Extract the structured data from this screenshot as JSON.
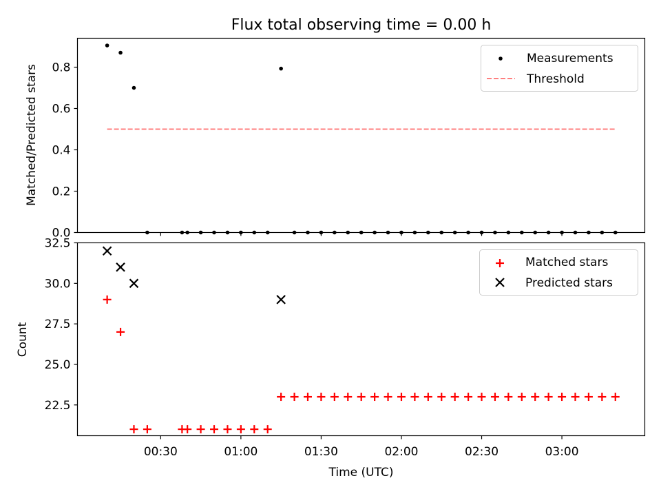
{
  "chart_data": [
    {
      "type": "scatter",
      "title": "Flux total observing time = 0.00 h",
      "ylabel": "Matched/Predicted stars",
      "xlabel": "",
      "ylim": [
        0,
        0.94
      ],
      "yticks": [
        "0.0",
        "0.2",
        "0.4",
        "0.6",
        "0.8"
      ],
      "grid": false,
      "legend_position": "top-right",
      "series": [
        {
          "name": "Measurements",
          "marker": "dot",
          "color": "#000000",
          "points": [
            [
              "00:10",
              0.905
            ],
            [
              "00:15",
              0.87
            ],
            [
              "00:20",
              0.7
            ],
            [
              "00:25",
              0.0
            ],
            [
              "00:38",
              0.0
            ],
            [
              "00:40",
              0.0
            ],
            [
              "00:45",
              0.0
            ],
            [
              "00:50",
              0.0
            ],
            [
              "00:55",
              0.0
            ],
            [
              "01:00",
              0.0
            ],
            [
              "01:05",
              0.0
            ],
            [
              "01:10",
              0.0
            ],
            [
              "01:15",
              0.793
            ],
            [
              "01:20",
              0.0
            ],
            [
              "01:25",
              0.0
            ],
            [
              "01:30",
              0.0
            ],
            [
              "01:35",
              0.0
            ],
            [
              "01:40",
              0.0
            ],
            [
              "01:45",
              0.0
            ],
            [
              "01:50",
              0.0
            ],
            [
              "01:55",
              0.0
            ],
            [
              "02:00",
              0.0
            ],
            [
              "02:05",
              0.0
            ],
            [
              "02:10",
              0.0
            ],
            [
              "02:15",
              0.0
            ],
            [
              "02:20",
              0.0
            ],
            [
              "02:25",
              0.0
            ],
            [
              "02:30",
              0.0
            ],
            [
              "02:35",
              0.0
            ],
            [
              "02:40",
              0.0
            ],
            [
              "02:45",
              0.0
            ],
            [
              "02:50",
              0.0
            ],
            [
              "02:55",
              0.0
            ],
            [
              "03:00",
              0.0
            ],
            [
              "03:05",
              0.0
            ],
            [
              "03:10",
              0.0
            ],
            [
              "03:15",
              0.0
            ],
            [
              "03:20",
              0.0
            ]
          ]
        },
        {
          "name": "Threshold",
          "marker": "dashed-line",
          "color": "#ff7f7f",
          "points": [
            [
              "00:10",
              0.5
            ],
            [
              "03:20",
              0.5
            ]
          ]
        }
      ]
    },
    {
      "type": "scatter",
      "title": "",
      "ylabel": "Count",
      "xlabel": "Time (UTC)",
      "ylim": [
        20.6,
        32.5
      ],
      "yticks": [
        "22.5",
        "25.0",
        "27.5",
        "30.0",
        "32.5"
      ],
      "xticks": [
        "00:30",
        "01:00",
        "01:30",
        "02:00",
        "02:30",
        "03:00"
      ],
      "grid": false,
      "legend_position": "top-right",
      "series": [
        {
          "name": "Matched stars",
          "marker": "plus",
          "color": "#ff0000",
          "points": [
            [
              "00:10",
              29
            ],
            [
              "00:15",
              27
            ],
            [
              "00:20",
              21
            ],
            [
              "00:25",
              21
            ],
            [
              "00:38",
              21
            ],
            [
              "00:40",
              21
            ],
            [
              "00:45",
              21
            ],
            [
              "00:50",
              21
            ],
            [
              "00:55",
              21
            ],
            [
              "01:00",
              21
            ],
            [
              "01:05",
              21
            ],
            [
              "01:10",
              21
            ],
            [
              "01:15",
              23
            ],
            [
              "01:20",
              23
            ],
            [
              "01:25",
              23
            ],
            [
              "01:30",
              23
            ],
            [
              "01:35",
              23
            ],
            [
              "01:40",
              23
            ],
            [
              "01:45",
              23
            ],
            [
              "01:50",
              23
            ],
            [
              "01:55",
              23
            ],
            [
              "02:00",
              23
            ],
            [
              "02:05",
              23
            ],
            [
              "02:10",
              23
            ],
            [
              "02:15",
              23
            ],
            [
              "02:20",
              23
            ],
            [
              "02:25",
              23
            ],
            [
              "02:30",
              23
            ],
            [
              "02:35",
              23
            ],
            [
              "02:40",
              23
            ],
            [
              "02:45",
              23
            ],
            [
              "02:50",
              23
            ],
            [
              "02:55",
              23
            ],
            [
              "03:00",
              23
            ],
            [
              "03:05",
              23
            ],
            [
              "03:10",
              23
            ],
            [
              "03:15",
              23
            ],
            [
              "03:20",
              23
            ]
          ]
        },
        {
          "name": "Predicted stars",
          "marker": "x",
          "color": "#000000",
          "points": [
            [
              "00:10",
              32
            ],
            [
              "00:15",
              31
            ],
            [
              "00:20",
              30
            ],
            [
              "01:15",
              29
            ]
          ]
        }
      ]
    }
  ]
}
